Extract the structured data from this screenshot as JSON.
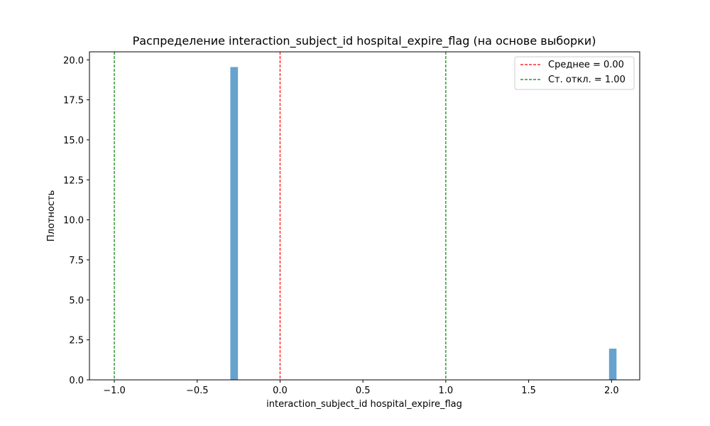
{
  "chart_data": {
    "type": "bar",
    "title": "Распределение interaction_subject_id hospital_expire_flag (на основе выборки)",
    "xlabel": "interaction_subject_id hospital_expire_flag",
    "ylabel": "Плотность",
    "xlim": [
      -1.15,
      2.17
    ],
    "ylim": [
      0,
      20.5
    ],
    "x_ticks": [
      -1.0,
      -0.5,
      0.0,
      0.5,
      1.0,
      1.5,
      2.0
    ],
    "x_tick_labels": [
      "−1.0",
      "−0.5",
      "0.0",
      "0.5",
      "1.0",
      "1.5",
      "2.0"
    ],
    "y_ticks": [
      0.0,
      2.5,
      5.0,
      7.5,
      10.0,
      12.5,
      15.0,
      17.5,
      20.0
    ],
    "y_tick_labels": [
      "0.0",
      "2.5",
      "5.0",
      "7.5",
      "10.0",
      "12.5",
      "15.0",
      "17.5",
      "20.0"
    ],
    "bar_color": "#5a9ac9",
    "bars": [
      {
        "x_start": -0.3,
        "x_end": -0.254,
        "value": 19.55
      },
      {
        "x_start": 1.985,
        "x_end": 2.03,
        "value": 1.95
      }
    ],
    "vlines": [
      {
        "x": 0.0,
        "color": "#ff0000",
        "style": "dashed",
        "legend": "Среднее = 0.00"
      },
      {
        "x": -1.0,
        "color": "#008000",
        "style": "dashed",
        "legend": "Ст. откл. = 1.00"
      },
      {
        "x": 1.0,
        "color": "#008000",
        "style": "dashed",
        "legend": null
      }
    ],
    "legend_position": "top-right",
    "grid": false
  }
}
